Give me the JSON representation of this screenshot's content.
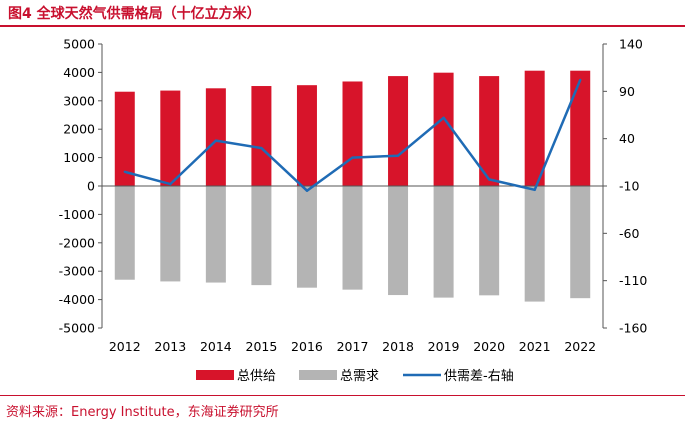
{
  "figure": {
    "title": "图4 全球天然气供需格局（十亿立方米）",
    "source": "资料来源：Energy Institute，东海证券研究所"
  },
  "chart_data": {
    "type": "bar",
    "categories": [
      "2012",
      "2013",
      "2014",
      "2015",
      "2016",
      "2017",
      "2018",
      "2019",
      "2020",
      "2021",
      "2022"
    ],
    "series": [
      {
        "name": "总供给",
        "kind": "bar",
        "axis": "left",
        "color": "#d7142a",
        "values": [
          3320,
          3360,
          3440,
          3520,
          3550,
          3680,
          3870,
          3990,
          3870,
          4060,
          4060
        ]
      },
      {
        "name": "总需求",
        "kind": "bar",
        "axis": "left",
        "color": "#b4b4b4",
        "values": [
          -3300,
          -3360,
          -3400,
          -3490,
          -3580,
          -3650,
          -3840,
          -3930,
          -3850,
          -4070,
          -3950
        ]
      },
      {
        "name": "供需差-右轴",
        "kind": "line",
        "axis": "right",
        "color": "#1f6bb5",
        "values": [
          5,
          -8,
          38,
          30,
          -15,
          20,
          22,
          62,
          -3,
          -14,
          102
        ]
      }
    ],
    "yLeft": {
      "min": -5000,
      "max": 5000,
      "step": 1000,
      "ticks": [
        "5000",
        "4000",
        "3000",
        "2000",
        "1000",
        "0",
        "-1000",
        "-2000",
        "-3000",
        "-4000",
        "-5000"
      ]
    },
    "yRight": {
      "min": -160,
      "max": 140,
      "step": 50,
      "ticks": [
        "140",
        "90",
        "40",
        "-10",
        "-60",
        "-110",
        "-160"
      ]
    },
    "legend": [
      "总供给",
      "总需求",
      "供需差-右轴"
    ],
    "legend_position": "bottom"
  }
}
